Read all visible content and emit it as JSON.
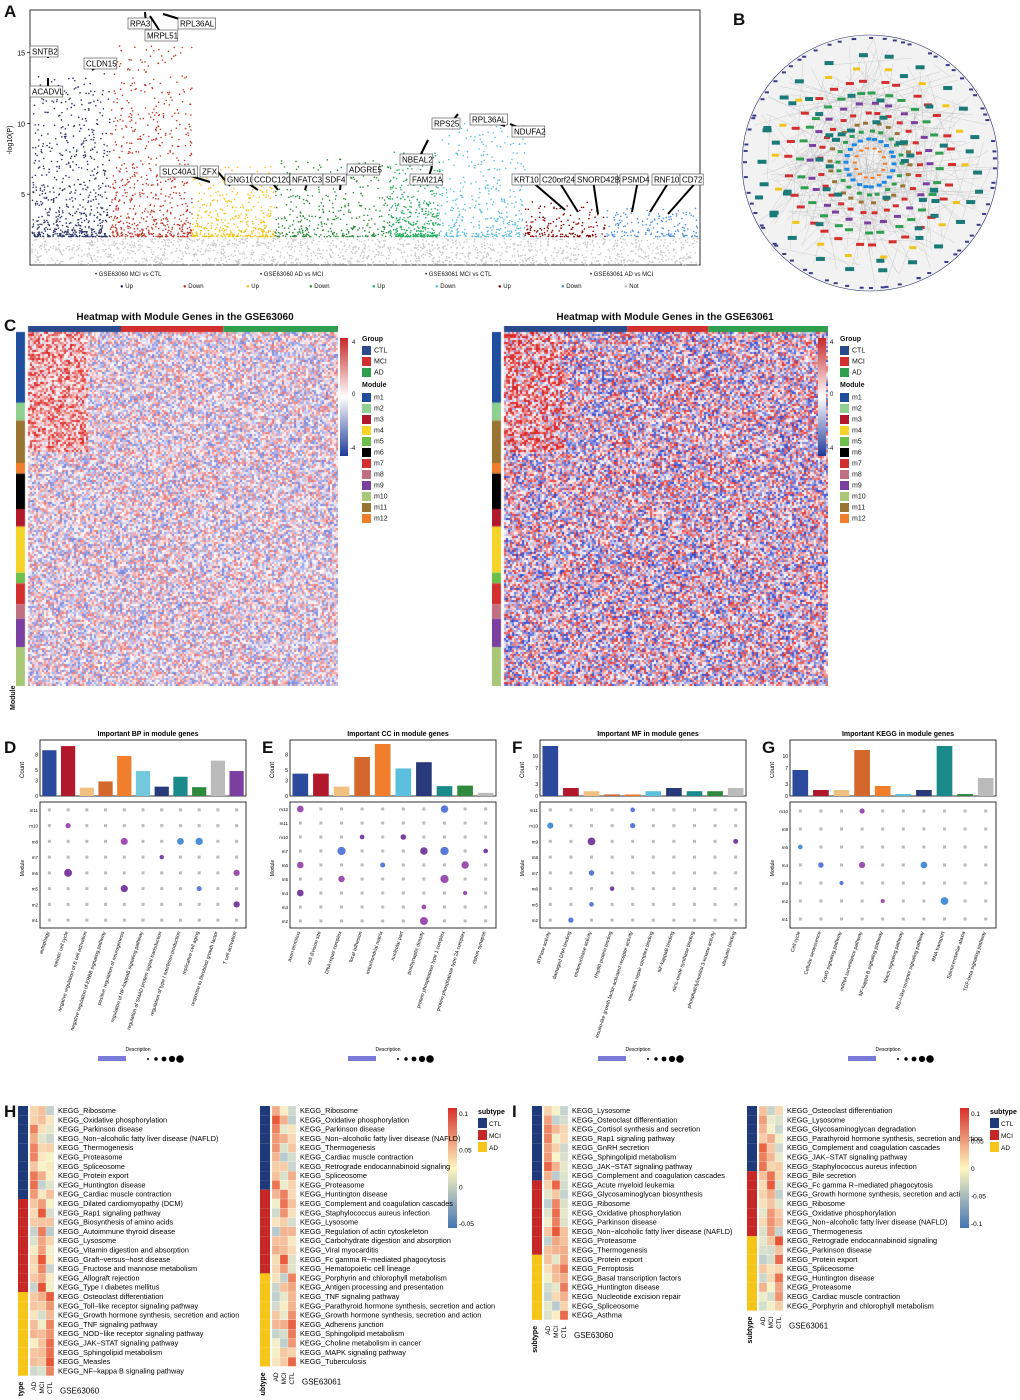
{
  "panels": {
    "A": "A",
    "B": "B",
    "C": "C",
    "D": "D",
    "E": "E",
    "F": "F",
    "G": "G",
    "H": "H",
    "I": "I"
  },
  "manhattan": {
    "ylabel": "-log10(P)",
    "yticks": [
      "5",
      "10",
      "15"
    ],
    "legend_groups": [
      "GSE63060 MCI vs CTL",
      "GSE63060 AD vs MCI",
      "GSE63061 MCI vs CTL",
      "GSE63061 AD vs MCI"
    ],
    "legend_items": [
      {
        "label": "Up",
        "color": "#2b3467"
      },
      {
        "label": "Down",
        "color": "#c0392b"
      },
      {
        "label": "Up",
        "color": "#f0c419"
      },
      {
        "label": "Down",
        "color": "#2e8b3d"
      },
      {
        "label": "Up",
        "color": "#27ae60"
      },
      {
        "label": "Down",
        "color": "#5bc0de"
      },
      {
        "label": "Up",
        "color": "#8b0000"
      },
      {
        "label": "Down",
        "color": "#4a90d9"
      },
      {
        "label": "Not",
        "color": "#bdbdbd"
      }
    ],
    "genes": [
      "RPA3",
      "RPL36AL",
      "MRPL51",
      "SNTB2",
      "CLDN15",
      "ACADVL",
      "SLC40A1",
      "ZFX",
      "GNG10",
      "CCDC120",
      "NFATC3",
      "SDF4",
      "ADGRE5",
      "NBEAL2",
      "FAM21A",
      "RPS25",
      "RPL36AL",
      "NDUFA2",
      "KRT10",
      "C20orf24",
      "SNORD42B",
      "PSMD4",
      "RNF10",
      "CD72"
    ]
  },
  "heatmap": {
    "title1": "Heatmap with Module Genes in the GSE63060",
    "title2": "Heatmap with Module Genes in the GSE63061",
    "group_label": "Group",
    "groups": [
      {
        "label": "CTL",
        "color": "#2b4a8b"
      },
      {
        "label": "MCI",
        "color": "#d32f2f"
      },
      {
        "label": "AD",
        "color": "#2e9e4f"
      }
    ],
    "scale_ticks": [
      "4",
      "0",
      "-4"
    ],
    "module_label": "Module",
    "modules": [
      {
        "label": "m1",
        "color": "#1f4e9e"
      },
      {
        "label": "m2",
        "color": "#8fcf8f"
      },
      {
        "label": "m3",
        "color": "#b2182b"
      },
      {
        "label": "m4",
        "color": "#f5d327"
      },
      {
        "label": "m5",
        "color": "#6cc04a"
      },
      {
        "label": "m6",
        "color": "#000000"
      },
      {
        "label": "m7",
        "color": "#d32f2f"
      },
      {
        "label": "m8",
        "color": "#c07080"
      },
      {
        "label": "m9",
        "color": "#7b3fa0"
      },
      {
        "label": "m10",
        "color": "#a8c878"
      },
      {
        "label": "m11",
        "color": "#9a7432"
      },
      {
        "label": "m12",
        "color": "#f07e2a"
      }
    ],
    "row_axis": "Module"
  },
  "enrich": {
    "D": {
      "title": "Important BP in module genes",
      "ylabel": "Count",
      "ylabel2": "Module",
      "terms": [
        "autophagy",
        "meiotic cell cycle",
        "negative regulation of B cell activation",
        "negative regulation of ERBB signaling pathway",
        "positive regulation of neurogenesis",
        "regulation of NF-kappaB signaling pathway",
        "regulation of SMAD protein signal transduction",
        "regulation of type I interferon production",
        "replicative cell aging",
        "response to fibroblast growth factor",
        "T cell activation"
      ],
      "rows": [
        "m11",
        "m10",
        "m8",
        "m7",
        "m6",
        "m5",
        "m2",
        "m1"
      ],
      "desc": "Description"
    },
    "E": {
      "title": "Important CC in module genes",
      "ylabel": "Count",
      "ylabel2": "Module",
      "terms": [
        "axon terminus",
        "cell division site",
        "DNA repair complex",
        "focal adhesion",
        "mitochondrial matrix",
        "nucleolar part",
        "postsynaptic density",
        "protein phosphatase type 1 complex",
        "protein phosphatase type 2A complex",
        "ribbon synapse"
      ],
      "rows": [
        "m12",
        "m11",
        "m10",
        "m7",
        "m6",
        "m5",
        "m4",
        "m3",
        "m2"
      ],
      "desc": "Description"
    },
    "F": {
      "title": "Important MF in module genes",
      "ylabel": "Count",
      "ylabel2": "Module",
      "terms": [
        "ATPase activity",
        "damaged DNA binding",
        "endonuclease activity",
        "Hsp90 protein binding",
        "insulin-like growth factor-activated receptor activity",
        "mismatch repair complex binding",
        "NF-kappaB binding",
        "nitric-oxide synthase binding",
        "phosphatidylinositol 3-kinase activity",
        "ubiquitin binding"
      ],
      "rows": [
        "m11",
        "m10",
        "m9",
        "m8",
        "m7",
        "m6",
        "m5",
        "m2"
      ],
      "desc": "Description"
    },
    "G": {
      "title": "Important KEGG in module genes",
      "ylabel": "Count",
      "ylabel2": "Module",
      "terms": [
        "Cell cycle",
        "Cellular senescence",
        "FoxO signaling pathway",
        "mRNA surveillance pathway",
        "NF-kappa B signaling pathway",
        "Notch signaling pathway",
        "RIG-I-like receptor signaling pathway",
        "RNA transport",
        "Spinocerebellar ataxia",
        "TGF-beta signaling pathway"
      ],
      "rows": [
        "m10",
        "m8",
        "m6",
        "m4",
        "m3",
        "m2",
        "m1"
      ],
      "desc": "Description"
    }
  },
  "gsva": {
    "subtype_label": "subtype",
    "subtypes": [
      {
        "label": "CTL",
        "color": "#1f3a7a"
      },
      {
        "label": "MCI",
        "color": "#c62828"
      },
      {
        "label": "AD",
        "color": "#f5c518"
      }
    ],
    "H_ticks": [
      "0.1",
      "0.05",
      "0",
      "-0.05"
    ],
    "I_ticks": [
      "0.1",
      "0.05",
      "0",
      "-0.05",
      "-0.1"
    ],
    "col_labels": [
      "AD",
      "MCI",
      "CTL"
    ],
    "H1": {
      "dataset": "GSE63060",
      "terms": [
        "KEGG_Ribosome",
        "KEGG_Oxidative phosphorylation",
        "KEGG_Parkinson disease",
        "KEGG_Non−alcoholic fatty liver disease (NAFLD)",
        "KEGG_Thermogenesis",
        "KEGG_Proteasome",
        "KEGG_Spliceosome",
        "KEGG_Protein export",
        "KEGG_Huntington disease",
        "KEGG_Cardiac muscle contraction",
        "KEGG_Dilated cardiomyopathy (DCM)",
        "KEGG_Rap1 signaling pathway",
        "KEGG_Biosynthesis of amino acids",
        "KEGG_Autoimmune thyroid disease",
        "KEGG_Lysosome",
        "KEGG_Vitamin digestion and absorption",
        "KEGG_Graft−versus−host disease",
        "KEGG_Fructose and mannose metabolism",
        "KEGG_Allograft rejection",
        "KEGG_Type I diabetes mellitus",
        "KEGG_Osteoclast differentiation",
        "KEGG_Toll−like receptor signaling pathway",
        "KEGG_Growth hormone synthesis, secretion and action",
        "KEGG_TNF signaling pathway",
        "KEGG_NOD−like receptor signaling pathway",
        "KEGG_JAK−STAT signaling pathway",
        "KEGG_Sphingolipid metabolism",
        "KEGG_Measles",
        "KEGG_NF−kappa B signaling pathway"
      ]
    },
    "H2": {
      "dataset": "GSE63061",
      "terms": [
        "KEGG_Ribosome",
        "KEGG_Oxidative phosphorylation",
        "KEGG_Parkinson disease",
        "KEGG_Non−alcoholic fatty liver disease (NAFLD)",
        "KEGG_Thermogenesis",
        "KEGG_Cardiac muscle contraction",
        "KEGG_Retrograde endocannabinoid signaling",
        "KEGG_Spliceosome",
        "KEGG_Proteasome",
        "KEGG_Huntington disease",
        "KEGG_Complement and coagulation cascades",
        "KEGG_Staphylococcus aureus infection",
        "KEGG_Lysosome",
        "KEGG_Regulation of actin cytoskeleton",
        "KEGG_Carbohydrate digestion and absorption",
        "KEGG_Viral myocarditis",
        "KEGG_Fc gamma R−mediated phagocytosis",
        "KEGG_Hematopoietic cell lineage",
        "KEGG_Porphyrin and chlorophyll metabolism",
        "KEGG_Antigen processing and presentation",
        "KEGG_TNF signaling pathway",
        "KEGG_Parathyroid hormone synthesis, secretion and action",
        "KEGG_Growth hormone synthesis, secretion and action",
        "KEGG_Adherens junction",
        "KEGG_Sphingolipid metabolism",
        "KEGG_Choline metabolism in cancer",
        "KEGG_MAPK signaling pathway",
        "KEGG_Tuberculosis"
      ]
    },
    "I1": {
      "dataset": "GSE63060",
      "terms": [
        "KEGG_Lysosome",
        "KEGG_Osteoclast differentiation",
        "KEGG_Cortisol synthesis and secretion",
        "KEGG_Rap1 signaling pathway",
        "KEGG_GnRH secretion",
        "KEGG_Sphingolipid metabolism",
        "KEGG_JAK−STAT signaling pathway",
        "KEGG_Complement and coagulation cascades",
        "KEGG_Acute myeloid leukemia",
        "KEGG_Glycosaminoglycan biosynthesis",
        "KEGG_Ribosome",
        "KEGG_Oxidative phosphorylation",
        "KEGG_Parkinson disease",
        "KEGG_Non−alcoholic fatty liver disease (NAFLD)",
        "KEGG_Proteasome",
        "KEGG_Thermogenesis",
        "KEGG_Protein export",
        "KEGG_Ferroptosis",
        "KEGG_Basal transcription factors",
        "KEGG_Huntington disease",
        "KEGG_Nucleotide excision repair",
        "KEGG_Spliceosome",
        "KEGG_Asthma"
      ]
    },
    "I2": {
      "dataset": "GSE63061",
      "terms": [
        "KEGG_Osteoclast differentiation",
        "KEGG_Lysosome",
        "KEGG_Glycosaminoglycan degradation",
        "KEGG_Parathyroid hormone synthesis, secretion and action",
        "KEGG_Complement and coagulation cascades",
        "KEGG_JAK−STAT signaling pathway",
        "KEGG_Staphylococcus aureus infection",
        "KEGG_Bile secretion",
        "KEGG_Fc gamma R−mediated phagocytosis",
        "KEGG_Growth hormone synthesis, secretion and action",
        "KEGG_Ribosome",
        "KEGG_Oxidative phosphorylation",
        "KEGG_Non−alcoholic fatty liver disease (NAFLD)",
        "KEGG_Thermogenesis",
        "KEGG_Retrograde endocannabinoid signaling",
        "KEGG_Parkinson disease",
        "KEGG_Protein export",
        "KEGG_Spliceosome",
        "KEGG_Huntington disease",
        "KEGG_Proteasome",
        "KEGG_Cardiac muscle contraction",
        "KEGG_Porphyrin and chlorophyll metabolism"
      ]
    }
  },
  "chart_data": [
    {
      "type": "scatter",
      "panel": "A",
      "ylabel": "-log10(P)",
      "ylim": [
        0,
        18
      ],
      "series": [
        {
          "name": "GSE63060 MCI vs CTL"
        },
        {
          "name": "GSE63060 AD vs MCI"
        },
        {
          "name": "GSE63061 MCI vs CTL"
        },
        {
          "name": "GSE63061 AD vs MCI"
        }
      ]
    },
    {
      "type": "bar",
      "panel": "D",
      "categories": [
        "autophagy",
        "meiotic cell cycle",
        "negative regulation of B cell activation",
        "negative regulation of ERBB signaling pathway",
        "positive regulation of neurogenesis",
        "regulation of NF-kappaB signaling pathway",
        "regulation of SMAD protein signal transduction",
        "regulation of type I interferon production",
        "replicative cell aging",
        "response to fibroblast growth factor",
        "T cell activation"
      ],
      "values": [
        8.8,
        9.6,
        1.6,
        2.8,
        7.7,
        4.8,
        1.8,
        3.7,
        1.7,
        6.8,
        4.8
      ],
      "ylim": [
        0,
        10
      ]
    },
    {
      "type": "bar",
      "panel": "E",
      "categories": [
        "axon terminus",
        "cell division site",
        "DNA repair complex",
        "focal adhesion",
        "mitochondrial matrix",
        "nucleolar part",
        "postsynaptic density",
        "protein phosphatase type 1 complex",
        "protein phosphatase type 2A complex",
        "ribbon synapse"
      ],
      "values": [
        4.3,
        4.3,
        1.8,
        7.5,
        10.0,
        5.3,
        6.5,
        1.9,
        2.0,
        0.6
      ],
      "ylim": [
        0,
        10
      ]
    },
    {
      "type": "bar",
      "panel": "F",
      "categories": [
        "ATPase activity",
        "damaged DNA binding",
        "endonuclease activity",
        "Hsp90 protein binding",
        "insulin-like growth factor-activated receptor activity",
        "mismatch repair complex binding",
        "NF-kappaB binding",
        "nitric-oxide synthase binding",
        "phosphatidylinositol 3-kinase activity",
        "ubiquitin binding"
      ],
      "values": [
        12.5,
        2.0,
        1.2,
        0.4,
        0.4,
        1.2,
        2.0,
        1.2,
        1.2,
        2.0
      ],
      "ylim": [
        0,
        13
      ]
    },
    {
      "type": "bar",
      "panel": "G",
      "categories": [
        "Cell cycle",
        "Cellular senescence",
        "FoxO signaling pathway",
        "mRNA surveillance pathway",
        "NF-kappa B signaling pathway",
        "Notch signaling pathway",
        "RIG-I-like receptor signaling pathway",
        "RNA transport",
        "Spinocerebellar ataxia",
        "TGF-beta signaling pathway"
      ],
      "values": [
        6.5,
        1.5,
        1.5,
        11.5,
        2.5,
        0.5,
        1.5,
        12.5,
        0.5,
        4.5
      ],
      "ylim": [
        0,
        13
      ]
    }
  ]
}
